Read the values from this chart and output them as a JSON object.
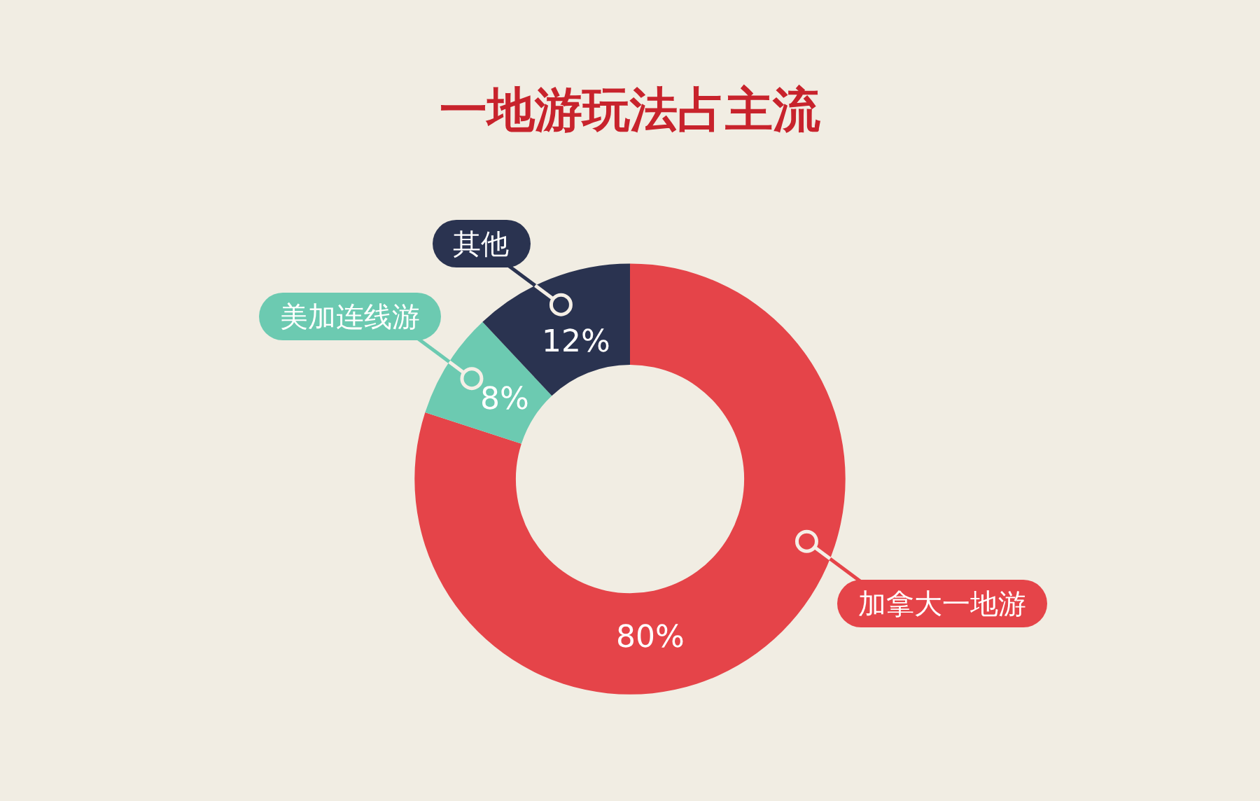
{
  "chart_data": {
    "type": "donut",
    "title": "一地游玩法占主流",
    "categories": [
      "加拿大一地游",
      "美加连线游",
      "其他"
    ],
    "values": [
      80,
      8,
      12
    ],
    "colors": [
      "#e54449",
      "#6ccab1",
      "#2a3350"
    ],
    "value_labels": [
      "80%",
      "8%",
      "12%"
    ]
  }
}
